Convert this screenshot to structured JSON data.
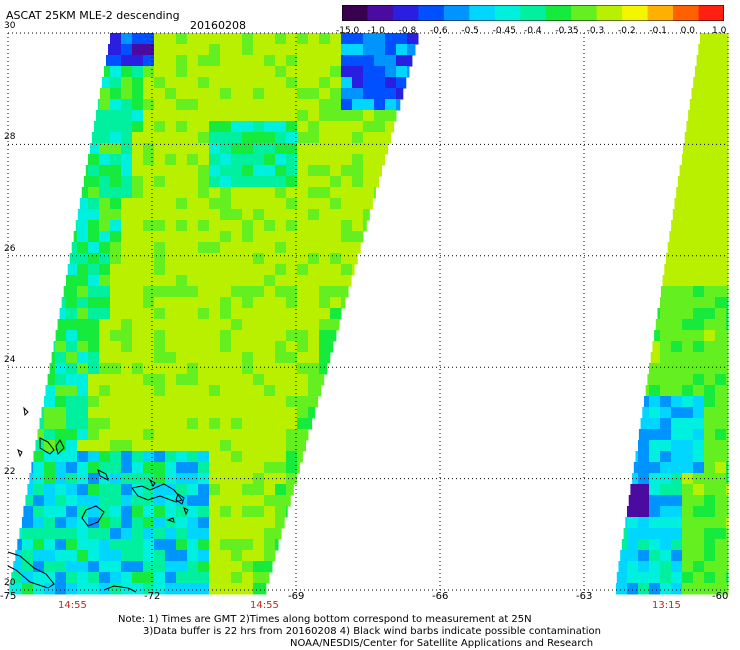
{
  "title": "ASCAT 25KM MLE-2 descending",
  "date": "20160208",
  "colorbar": {
    "labels": [
      "-15.0",
      "-1.0",
      "-0.8",
      "-0.6",
      "-0.5",
      "-0.45",
      "-0.4",
      "-0.35",
      "-0.3",
      "-0.2",
      "-0.1",
      "0.0",
      "1.0"
    ],
    "colors": [
      "#3a0050",
      "#4b0aa0",
      "#2a1ee0",
      "#0050ff",
      "#0094ff",
      "#00d6ff",
      "#00f0e0",
      "#00f0a0",
      "#16ea3c",
      "#64f020",
      "#b8f000",
      "#f5f500",
      "#ffb000",
      "#ff6000",
      "#ff2010"
    ]
  },
  "map": {
    "lat_labels": [
      "30",
      "28",
      "26",
      "24",
      "22",
      "20"
    ],
    "lon_labels": [
      "-75",
      "-72",
      "-69",
      "-66",
      "-63",
      "-60"
    ],
    "pass_times": [
      "14:55",
      "14:55",
      "13:15"
    ],
    "colors": {
      "grid": "#000000",
      "coast": "#000000",
      "time_label": "#c8241b",
      "typical_value": "#7ee82a"
    }
  },
  "notes": {
    "line1": "Note: 1) Times are GMT 2)Times along bottom correspond to measurement at 25N",
    "line2": "3)Data buffer is 22 hrs from 20160208 4) Black wind barbs indicate possible contamination",
    "line3": "NOAA/NESDIS/Center for Satellite Applications and Research"
  }
}
